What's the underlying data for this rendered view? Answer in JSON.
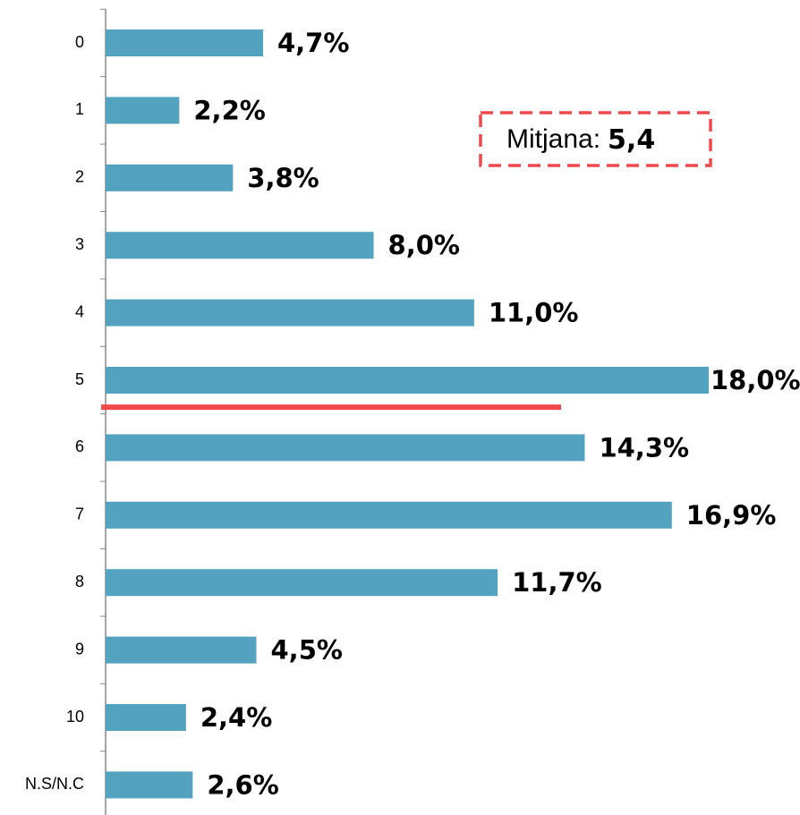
{
  "chart_data": {
    "type": "bar",
    "orientation": "horizontal",
    "categories": [
      "0",
      "1",
      "2",
      "3",
      "4",
      "5",
      "6",
      "7",
      "8",
      "9",
      "10",
      "N.S/N.C"
    ],
    "values": [
      4.7,
      2.2,
      3.8,
      8.0,
      11.0,
      18.0,
      14.3,
      16.9,
      11.7,
      4.5,
      2.4,
      2.6
    ],
    "value_labels": [
      "4,7%",
      "2,2%",
      "3,8%",
      "8,0%",
      "11,0%",
      "18,0%",
      "14,3%",
      "16,9%",
      "11,7%",
      "4,5%",
      "2,4%",
      "2,6%"
    ],
    "color": "#53a3c0",
    "mean": {
      "label": "Mitjana:",
      "value": 5.4,
      "value_label": "5,4",
      "color": "#f0494d"
    }
  }
}
